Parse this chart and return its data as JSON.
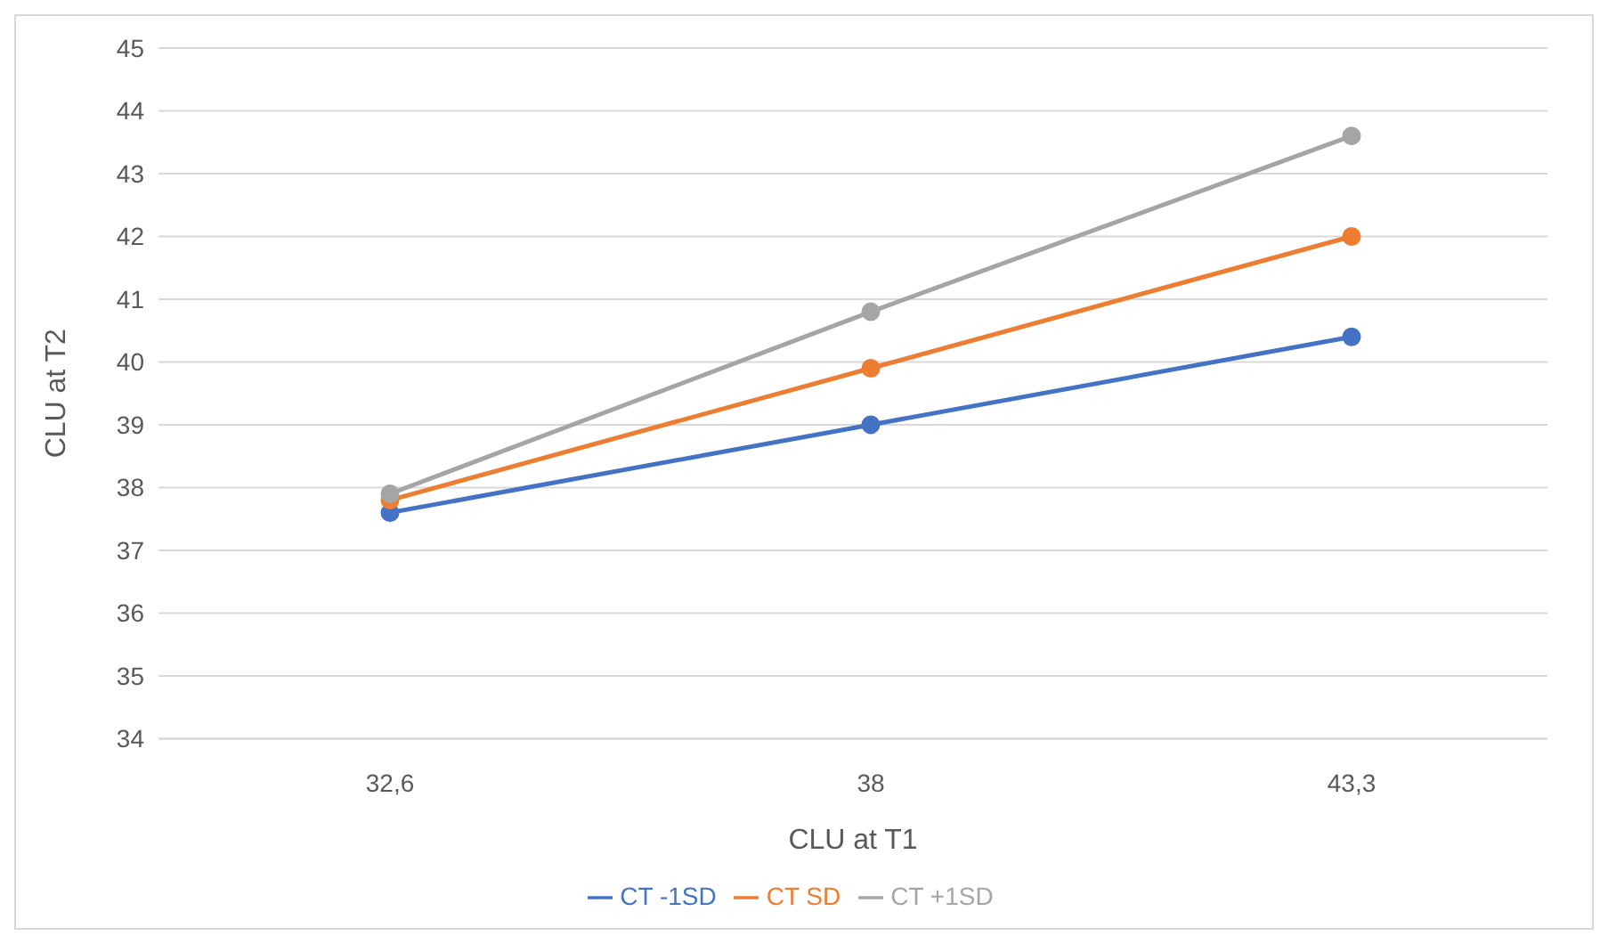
{
  "chart_data": {
    "type": "line",
    "xlabel": "CLU at T1",
    "ylabel": "CLU at T2",
    "categories": [
      "32,6",
      "38",
      "43,3"
    ],
    "series": [
      {
        "name": "CT -1SD",
        "color": "#4472c4",
        "values": [
          37.6,
          39.0,
          40.4
        ]
      },
      {
        "name": "CT SD",
        "color": "#ed7d31",
        "values": [
          37.8,
          39.9,
          42.0
        ]
      },
      {
        "name": "CT +1SD",
        "color": "#a5a5a5",
        "values": [
          37.9,
          40.8,
          43.6
        ]
      }
    ],
    "ylim": [
      34,
      45
    ],
    "yticks": [
      34,
      35,
      36,
      37,
      38,
      39,
      40,
      41,
      42,
      43,
      44,
      45
    ],
    "grid": "y",
    "legend": "bottom",
    "marker": "circle",
    "line_style": "solid"
  }
}
